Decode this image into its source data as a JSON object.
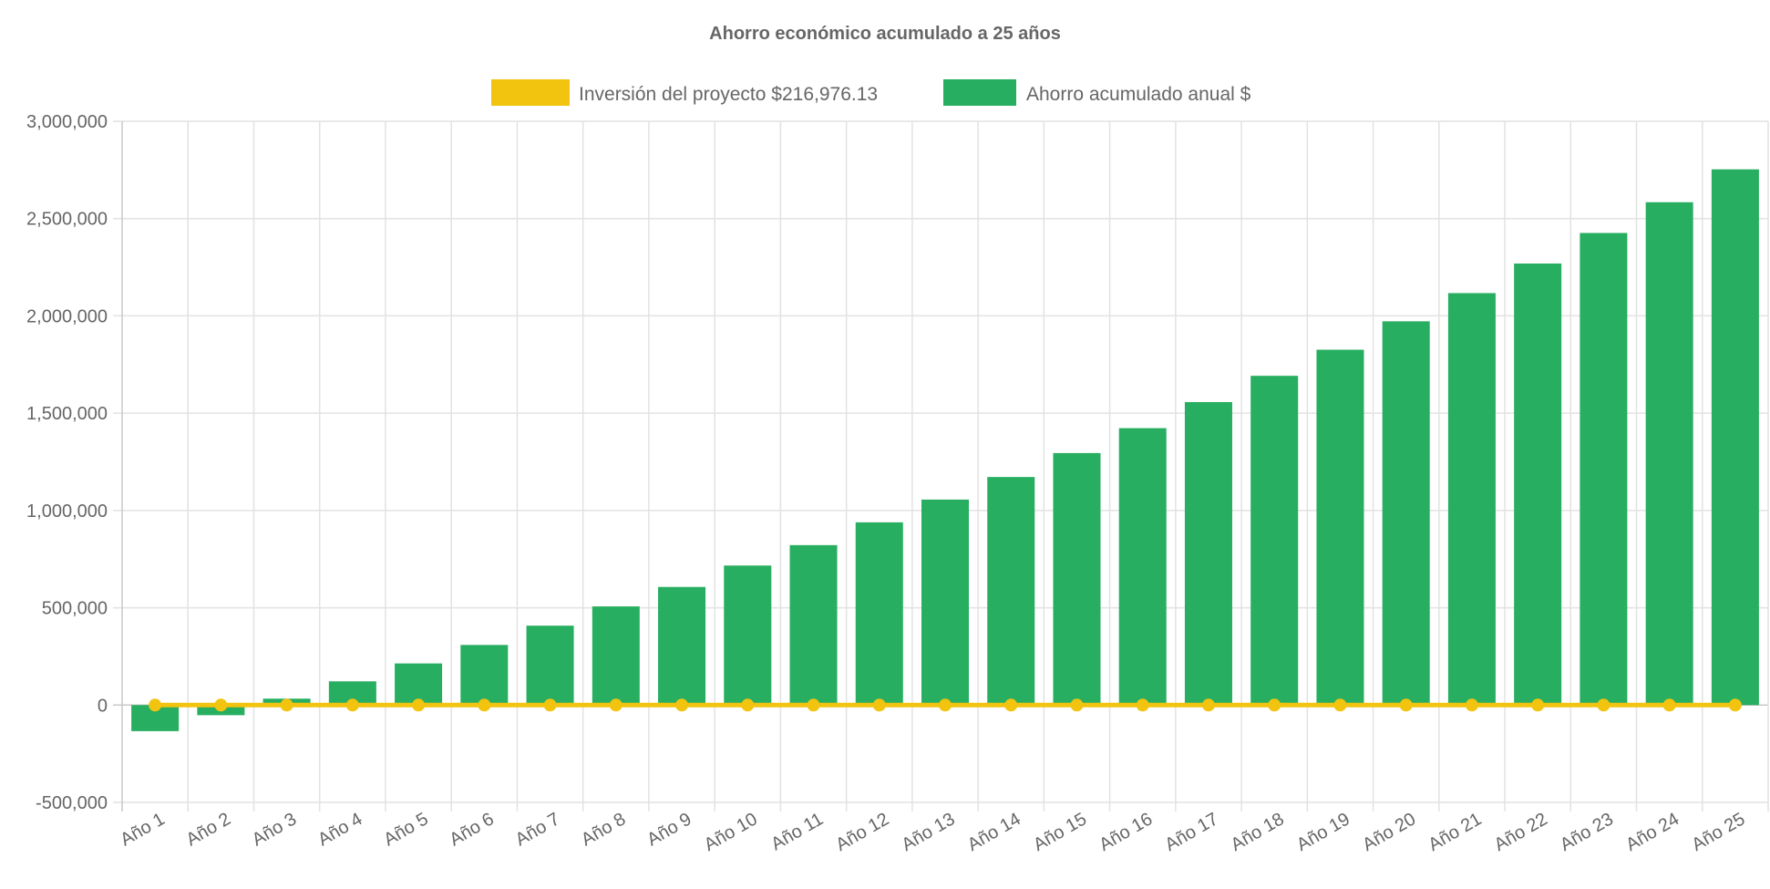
{
  "chart_data": {
    "type": "bar",
    "title": "Ahorro económico acumulado a 25 años",
    "xlabel": "",
    "ylabel": "",
    "ylim": [
      -500000,
      3000000
    ],
    "yticks": [
      -500000,
      0,
      500000,
      1000000,
      1500000,
      2000000,
      2500000,
      3000000
    ],
    "ytick_labels": [
      "-500,000",
      "0",
      "500,000",
      "1,000,000",
      "1,500,000",
      "2,000,000",
      "2,500,000",
      "3,000,000"
    ],
    "grid": true,
    "legend_position": "top",
    "categories": [
      "Año 1",
      "Año 2",
      "Año 3",
      "Año 4",
      "Año 5",
      "Año 6",
      "Año 7",
      "Año 8",
      "Año 9",
      "Año 10",
      "Año 11",
      "Año 12",
      "Año 13",
      "Año 14",
      "Año 15",
      "Año 16",
      "Año 17",
      "Año 18",
      "Año 19",
      "Año 20",
      "Año 21",
      "Año 22",
      "Año 23",
      "Año 24",
      "Año 25"
    ],
    "series": [
      {
        "name": "Inversión del proyecto $216,976.13",
        "type": "line",
        "color": "#f2c30f",
        "values": [
          0,
          0,
          0,
          0,
          0,
          0,
          0,
          0,
          0,
          0,
          0,
          0,
          0,
          0,
          0,
          0,
          0,
          0,
          0,
          0,
          0,
          0,
          0,
          0,
          0
        ]
      },
      {
        "name": "Ahorro acumulado anual $",
        "type": "bar",
        "color": "#27ae60",
        "values": [
          -134000,
          -52000,
          33000,
          122000,
          214000,
          309000,
          408000,
          507000,
          607000,
          717000,
          822000,
          939000,
          1056000,
          1172000,
          1295000,
          1423000,
          1557000,
          1692000,
          1826000,
          1972000,
          2117000,
          2269000,
          2426000,
          2584000,
          2753000
        ]
      }
    ]
  }
}
